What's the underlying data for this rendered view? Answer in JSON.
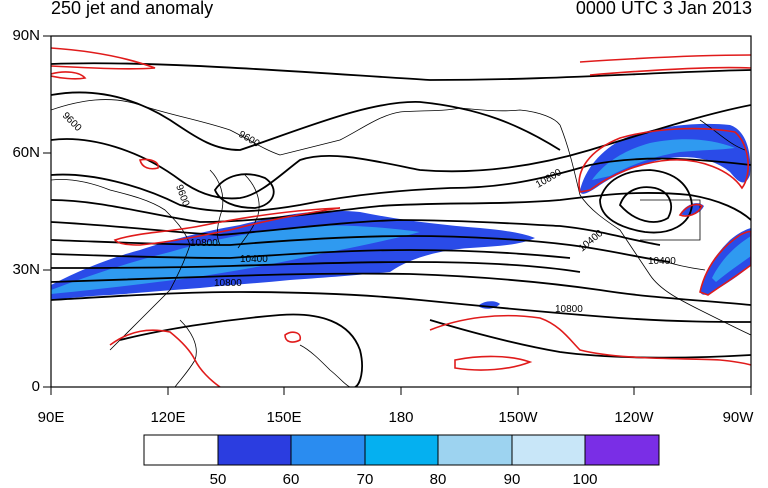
{
  "title_left": "250 jet and anomaly",
  "title_right": "0000 UTC 3 Jan 2013",
  "lat_labels": [
    "90N",
    "60N",
    "30N",
    "0"
  ],
  "lon_labels": [
    "90E",
    "120E",
    "150E",
    "180",
    "150W",
    "120W",
    "90W"
  ],
  "contour_labels": [
    "9600",
    "9600",
    "9600",
    "10400",
    "10800",
    "10800",
    "10800",
    "10400",
    "10400",
    "10800"
  ],
  "colorbar": {
    "labels": [
      "50",
      "60",
      "70",
      "80",
      "90",
      "100"
    ],
    "colors": [
      "#ffffff",
      "#2b3de0",
      "#2a8cf0",
      "#05b0f0",
      "#9dd3f0",
      "#c8e6f8",
      "#7a2ee6"
    ]
  },
  "colors": {
    "jet_fill": "#2a4be8",
    "jet_core": "#2f9af0",
    "anomaly": "#e01b1b",
    "height_contour": "#000000",
    "coast": "#000000"
  }
}
